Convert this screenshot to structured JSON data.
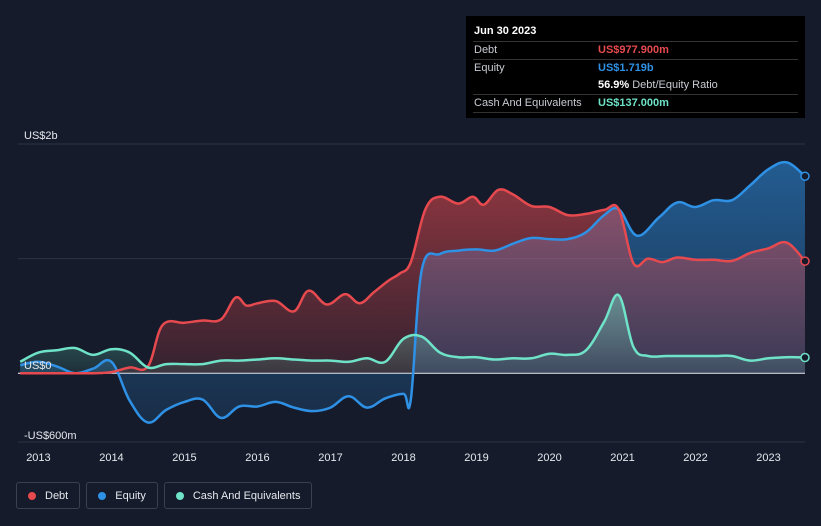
{
  "tooltip": {
    "date": "Jun 30 2023",
    "debt_label": "Debt",
    "debt_value": "US$977.900m",
    "equity_label": "Equity",
    "equity_value": "US$1.719b",
    "ratio_value": "56.9%",
    "ratio_label": "Debt/Equity Ratio",
    "cash_label": "Cash And Equivalents",
    "cash_value": "US$137.000m"
  },
  "legend": {
    "debt": "Debt",
    "equity": "Equity",
    "cash": "Cash And Equivalents"
  },
  "colors": {
    "debt": "#e64a4f",
    "equity": "#2e91e5",
    "cash": "#6fe3c8",
    "background": "#151b2a"
  },
  "chart_data": {
    "type": "area",
    "y_unit": "US$ m",
    "ylim": [
      -600,
      2000
    ],
    "y_ticks": [
      {
        "value": 2000,
        "label": "US$2b"
      },
      {
        "value": 0,
        "label": "US$0"
      },
      {
        "value": -600,
        "label": "-US$600m"
      }
    ],
    "x_ticks": [
      "2013",
      "2014",
      "2015",
      "2016",
      "2017",
      "2018",
      "2019",
      "2020",
      "2021",
      "2022",
      "2023"
    ],
    "xlim": [
      2012.72,
      2023.5
    ],
    "series": [
      {
        "name": "Debt",
        "key": "debt",
        "points": [
          [
            2012.75,
            0
          ],
          [
            2013.0,
            0
          ],
          [
            2013.5,
            0
          ],
          [
            2013.75,
            0
          ],
          [
            2014.0,
            10
          ],
          [
            2014.25,
            50
          ],
          [
            2014.5,
            60
          ],
          [
            2014.7,
            420
          ],
          [
            2015.0,
            440
          ],
          [
            2015.25,
            460
          ],
          [
            2015.5,
            470
          ],
          [
            2015.7,
            660
          ],
          [
            2015.85,
            590
          ],
          [
            2016.0,
            610
          ],
          [
            2016.25,
            630
          ],
          [
            2016.5,
            540
          ],
          [
            2016.7,
            720
          ],
          [
            2016.95,
            600
          ],
          [
            2017.2,
            690
          ],
          [
            2017.4,
            610
          ],
          [
            2017.6,
            710
          ],
          [
            2017.8,
            810
          ],
          [
            2017.95,
            870
          ],
          [
            2018.1,
            970
          ],
          [
            2018.3,
            1430
          ],
          [
            2018.5,
            1540
          ],
          [
            2018.75,
            1480
          ],
          [
            2018.95,
            1540
          ],
          [
            2019.1,
            1470
          ],
          [
            2019.3,
            1600
          ],
          [
            2019.5,
            1560
          ],
          [
            2019.75,
            1460
          ],
          [
            2020.0,
            1450
          ],
          [
            2020.25,
            1380
          ],
          [
            2020.5,
            1390
          ],
          [
            2020.75,
            1425
          ],
          [
            2020.95,
            1430
          ],
          [
            2021.15,
            960
          ],
          [
            2021.35,
            1000
          ],
          [
            2021.55,
            970
          ],
          [
            2021.75,
            1010
          ],
          [
            2022.0,
            990
          ],
          [
            2022.25,
            990
          ],
          [
            2022.5,
            980
          ],
          [
            2022.75,
            1050
          ],
          [
            2023.0,
            1090
          ],
          [
            2023.25,
            1140
          ],
          [
            2023.5,
            977.9
          ]
        ]
      },
      {
        "name": "Equity",
        "key": "equity",
        "points": [
          [
            2012.75,
            70
          ],
          [
            2013.0,
            100
          ],
          [
            2013.25,
            60
          ],
          [
            2013.5,
            0
          ],
          [
            2013.75,
            40
          ],
          [
            2014.0,
            100
          ],
          [
            2014.25,
            -240
          ],
          [
            2014.5,
            -430
          ],
          [
            2014.75,
            -320
          ],
          [
            2015.0,
            -250
          ],
          [
            2015.25,
            -230
          ],
          [
            2015.5,
            -390
          ],
          [
            2015.75,
            -290
          ],
          [
            2016.0,
            -290
          ],
          [
            2016.25,
            -250
          ],
          [
            2016.5,
            -300
          ],
          [
            2016.75,
            -330
          ],
          [
            2017.0,
            -300
          ],
          [
            2017.25,
            -200
          ],
          [
            2017.5,
            -300
          ],
          [
            2017.75,
            -220
          ],
          [
            2018.0,
            -180
          ],
          [
            2018.1,
            -230
          ],
          [
            2018.25,
            900
          ],
          [
            2018.5,
            1040
          ],
          [
            2018.75,
            1070
          ],
          [
            2019.0,
            1080
          ],
          [
            2019.25,
            1070
          ],
          [
            2019.5,
            1130
          ],
          [
            2019.75,
            1180
          ],
          [
            2020.0,
            1170
          ],
          [
            2020.25,
            1170
          ],
          [
            2020.5,
            1230
          ],
          [
            2020.75,
            1380
          ],
          [
            2020.95,
            1430
          ],
          [
            2021.2,
            1200
          ],
          [
            2021.5,
            1360
          ],
          [
            2021.75,
            1490
          ],
          [
            2022.0,
            1450
          ],
          [
            2022.25,
            1510
          ],
          [
            2022.5,
            1510
          ],
          [
            2022.75,
            1640
          ],
          [
            2023.0,
            1780
          ],
          [
            2023.25,
            1840
          ],
          [
            2023.5,
            1719
          ]
        ]
      },
      {
        "name": "Cash And Equivalents",
        "key": "cash",
        "points": [
          [
            2012.75,
            100
          ],
          [
            2013.0,
            180
          ],
          [
            2013.25,
            200
          ],
          [
            2013.5,
            220
          ],
          [
            2013.75,
            160
          ],
          [
            2014.0,
            210
          ],
          [
            2014.25,
            180
          ],
          [
            2014.5,
            50
          ],
          [
            2014.75,
            80
          ],
          [
            2015.0,
            80
          ],
          [
            2015.25,
            80
          ],
          [
            2015.5,
            110
          ],
          [
            2015.75,
            110
          ],
          [
            2016.0,
            120
          ],
          [
            2016.25,
            130
          ],
          [
            2016.5,
            120
          ],
          [
            2016.75,
            110
          ],
          [
            2017.0,
            110
          ],
          [
            2017.25,
            100
          ],
          [
            2017.5,
            130
          ],
          [
            2017.75,
            100
          ],
          [
            2018.0,
            300
          ],
          [
            2018.25,
            320
          ],
          [
            2018.5,
            180
          ],
          [
            2018.75,
            140
          ],
          [
            2019.0,
            140
          ],
          [
            2019.25,
            120
          ],
          [
            2019.5,
            130
          ],
          [
            2019.75,
            130
          ],
          [
            2020.0,
            170
          ],
          [
            2020.25,
            160
          ],
          [
            2020.5,
            200
          ],
          [
            2020.75,
            450
          ],
          [
            2020.95,
            680
          ],
          [
            2021.15,
            230
          ],
          [
            2021.35,
            150
          ],
          [
            2021.6,
            150
          ],
          [
            2021.85,
            150
          ],
          [
            2022.0,
            150
          ],
          [
            2022.25,
            150
          ],
          [
            2022.5,
            150
          ],
          [
            2022.75,
            110
          ],
          [
            2023.0,
            130
          ],
          [
            2023.25,
            140
          ],
          [
            2023.5,
            137
          ]
        ]
      }
    ],
    "grid": true,
    "legend_position": "bottom-left"
  }
}
